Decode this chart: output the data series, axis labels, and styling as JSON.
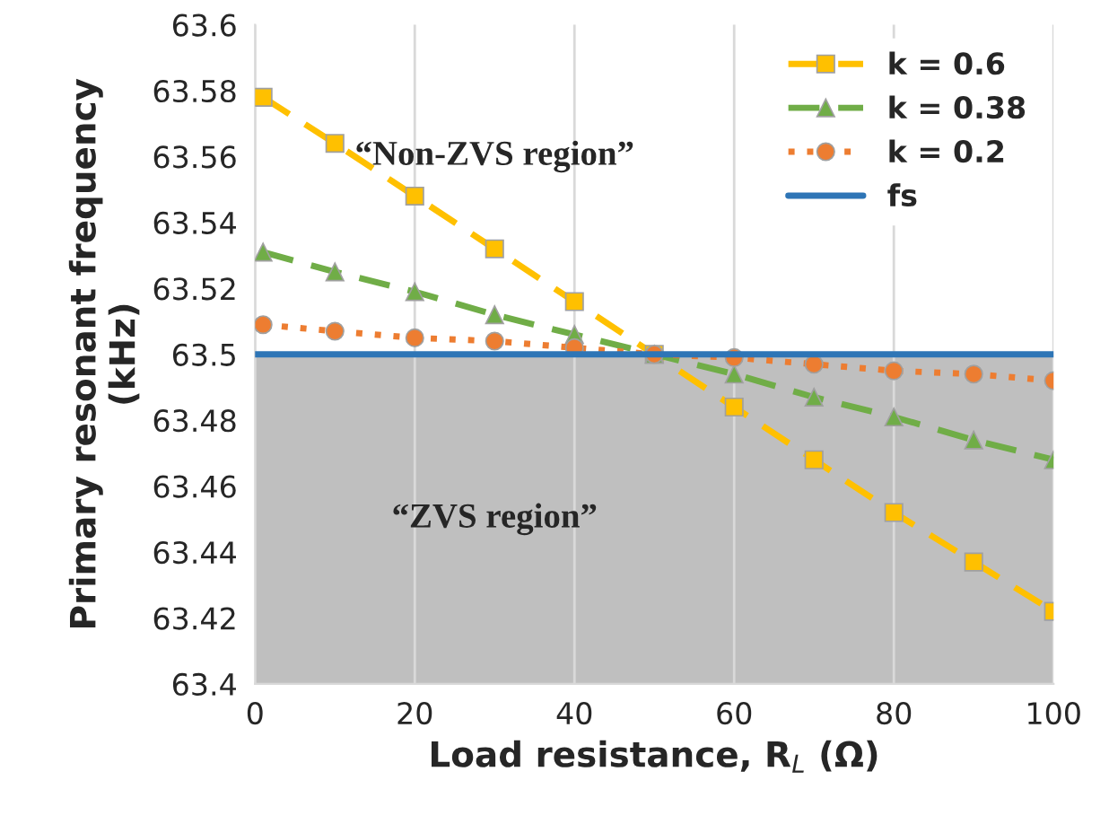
{
  "chart_data": {
    "type": "line",
    "xlabel": "Load resistance, R$_{L}$ (Ω)",
    "ylabel": "Primary resonant frequency\n(kHz)",
    "xlim": [
      0,
      100
    ],
    "xticks": [
      0,
      20,
      40,
      60,
      80,
      100
    ],
    "ylim": [
      63.4,
      63.6
    ],
    "yticks": [
      63.4,
      63.42,
      63.44,
      63.46,
      63.48,
      63.5,
      63.52,
      63.54,
      63.56,
      63.58,
      63.6
    ],
    "grid": "x",
    "legend": "top right",
    "series": [
      {
        "name": "k = 0.6",
        "color": "#ffc000",
        "marker": "square",
        "line_style": "dashed",
        "x": [
          1,
          10,
          20,
          30,
          40,
          50,
          60,
          70,
          80,
          90,
          100
        ],
        "values": [
          63.578,
          63.564,
          63.548,
          63.532,
          63.516,
          63.5,
          63.484,
          63.468,
          63.452,
          63.437,
          63.422
        ]
      },
      {
        "name": "k = 0.38",
        "color": "#70ad47",
        "marker": "triangle",
        "line_style": "dashed",
        "x": [
          1,
          10,
          20,
          30,
          40,
          50,
          60,
          70,
          80,
          90,
          100
        ],
        "values": [
          63.531,
          63.525,
          63.519,
          63.512,
          63.506,
          63.5,
          63.494,
          63.487,
          63.481,
          63.474,
          63.468
        ]
      },
      {
        "name": "k = 0.2",
        "color": "#ed7d31",
        "marker": "circle",
        "line_style": "dotted",
        "x": [
          1,
          10,
          20,
          30,
          40,
          50,
          60,
          70,
          80,
          90,
          100
        ],
        "values": [
          63.509,
          63.507,
          63.505,
          63.504,
          63.502,
          63.5,
          63.499,
          63.497,
          63.495,
          63.494,
          63.492
        ]
      },
      {
        "name": "fs",
        "color": "#2e75b6",
        "marker": "none",
        "line_style": "solid",
        "x": [
          0,
          100
        ],
        "values": [
          63.5,
          63.5
        ]
      }
    ],
    "bands": [
      {
        "axis": "y",
        "from": 63.4,
        "to": 63.5,
        "label": "“ZVS region”",
        "color": "#bfbfbf"
      }
    ],
    "annotations": [
      "“Non-ZVS region”"
    ]
  }
}
